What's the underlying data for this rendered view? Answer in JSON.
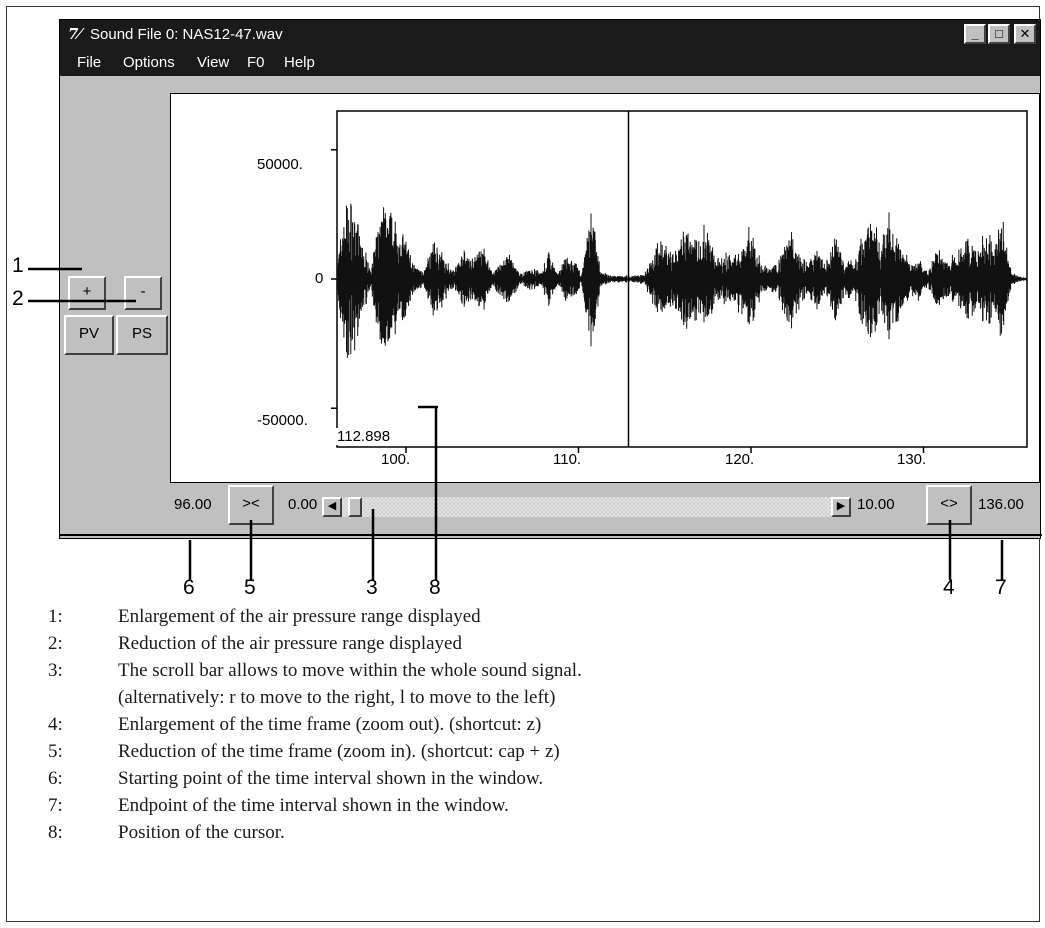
{
  "window": {
    "title": "Sound File 0: NAS12-47.wav",
    "icon_glyph": "7⁄",
    "buttons": {
      "minimize": "_",
      "maximize": "□",
      "close": "✕"
    }
  },
  "menu": [
    "File",
    "Options",
    "View",
    "F0",
    "Help"
  ],
  "left_panel": {
    "amp_zoom_in": "+",
    "amp_zoom_out": "-",
    "pv": "PV",
    "ps": "PS"
  },
  "plot": {
    "y_ticks": [
      "50000.",
      "0",
      "-50000."
    ],
    "x_ticks": [
      "100.",
      "110.",
      "120.",
      "130."
    ],
    "cursor_readout": "112.898",
    "chart_data": {
      "type": "line",
      "x_range": [
        96.0,
        136.0
      ],
      "y_range": [
        -65000,
        65000
      ],
      "cursor_x": 112.898,
      "x_ticks": [
        100,
        110,
        120,
        130
      ],
      "y_ticks": [
        50000,
        0,
        -50000
      ],
      "envelope": [
        {
          "x": 96.0,
          "a": 6000
        },
        {
          "x": 96.5,
          "a": 36000
        },
        {
          "x": 97.0,
          "a": 31000
        },
        {
          "x": 97.5,
          "a": 14000
        },
        {
          "x": 98.0,
          "a": 6000
        },
        {
          "x": 98.6,
          "a": 33000
        },
        {
          "x": 99.0,
          "a": 28000
        },
        {
          "x": 99.5,
          "a": 24000
        },
        {
          "x": 100.0,
          "a": 17000
        },
        {
          "x": 100.5,
          "a": 6000
        },
        {
          "x": 101.0,
          "a": 3000
        },
        {
          "x": 101.6,
          "a": 17000
        },
        {
          "x": 102.2,
          "a": 10000
        },
        {
          "x": 102.8,
          "a": 4000
        },
        {
          "x": 103.3,
          "a": 12000
        },
        {
          "x": 103.9,
          "a": 9000
        },
        {
          "x": 104.5,
          "a": 14000
        },
        {
          "x": 105.0,
          "a": 3000
        },
        {
          "x": 105.5,
          "a": 8000
        },
        {
          "x": 106.0,
          "a": 11000
        },
        {
          "x": 106.6,
          "a": 2000
        },
        {
          "x": 107.2,
          "a": 5000
        },
        {
          "x": 107.8,
          "a": 3000
        },
        {
          "x": 108.3,
          "a": 12000
        },
        {
          "x": 108.8,
          "a": 2000
        },
        {
          "x": 109.2,
          "a": 10000
        },
        {
          "x": 109.8,
          "a": 7000
        },
        {
          "x": 110.2,
          "a": 3000
        },
        {
          "x": 110.8,
          "a": 34000
        },
        {
          "x": 111.3,
          "a": 3000
        },
        {
          "x": 112.0,
          "a": 1500
        },
        {
          "x": 113.0,
          "a": 1500
        },
        {
          "x": 113.8,
          "a": 2000
        },
        {
          "x": 114.3,
          "a": 12000
        },
        {
          "x": 114.8,
          "a": 18000
        },
        {
          "x": 115.3,
          "a": 12000
        },
        {
          "x": 115.8,
          "a": 14000
        },
        {
          "x": 116.4,
          "a": 26000
        },
        {
          "x": 117.0,
          "a": 18000
        },
        {
          "x": 117.4,
          "a": 24000
        },
        {
          "x": 118.0,
          "a": 8000
        },
        {
          "x": 118.5,
          "a": 11000
        },
        {
          "x": 119.0,
          "a": 10000
        },
        {
          "x": 119.5,
          "a": 17000
        },
        {
          "x": 120.0,
          "a": 22000
        },
        {
          "x": 120.6,
          "a": 7000
        },
        {
          "x": 121.2,
          "a": 5000
        },
        {
          "x": 121.8,
          "a": 12000
        },
        {
          "x": 122.3,
          "a": 24000
        },
        {
          "x": 122.8,
          "a": 13000
        },
        {
          "x": 123.3,
          "a": 6000
        },
        {
          "x": 123.8,
          "a": 14000
        },
        {
          "x": 124.3,
          "a": 6000
        },
        {
          "x": 124.9,
          "a": 18000
        },
        {
          "x": 125.4,
          "a": 9000
        },
        {
          "x": 126.0,
          "a": 8000
        },
        {
          "x": 126.5,
          "a": 20000
        },
        {
          "x": 127.0,
          "a": 34000
        },
        {
          "x": 127.5,
          "a": 14000
        },
        {
          "x": 128.0,
          "a": 30000
        },
        {
          "x": 128.6,
          "a": 16000
        },
        {
          "x": 129.2,
          "a": 7000
        },
        {
          "x": 129.8,
          "a": 9000
        },
        {
          "x": 130.3,
          "a": 4000
        },
        {
          "x": 130.8,
          "a": 14000
        },
        {
          "x": 131.4,
          "a": 8000
        },
        {
          "x": 132.0,
          "a": 11000
        },
        {
          "x": 132.6,
          "a": 19000
        },
        {
          "x": 133.1,
          "a": 11000
        },
        {
          "x": 133.6,
          "a": 20000
        },
        {
          "x": 134.1,
          "a": 16000
        },
        {
          "x": 134.6,
          "a": 26000
        },
        {
          "x": 135.1,
          "a": 3000
        },
        {
          "x": 135.6,
          "a": 1000
        },
        {
          "x": 136.0,
          "a": 1000
        }
      ]
    }
  },
  "bottom_bar": {
    "start_time": "96.00",
    "zoom_in": "><",
    "scroll_min": "0.00",
    "scroll_max": "10.00",
    "zoom_out": "<>",
    "end_time": "136.00",
    "scroll_position": 0.02
  },
  "callouts": [
    "1",
    "2",
    "3",
    "4",
    "5",
    "6",
    "7",
    "8"
  ],
  "legend": [
    {
      "num": "1:",
      "text": "Enlargement of the air pressure range displayed"
    },
    {
      "num": "2:",
      "text": "Reduction of the air pressure range displayed"
    },
    {
      "num": "3:",
      "text": "The scroll bar allows to move within the whole sound signal."
    },
    {
      "num": "",
      "text": "(alternatively: r to move to the right, l to move to the left)"
    },
    {
      "num": "4:",
      "text": "Enlargement of the time frame (zoom out). (shortcut: z)"
    },
    {
      "num": "5:",
      "text": "Reduction of the time frame (zoom in). (shortcut: cap + z)"
    },
    {
      "num": "6:",
      "text": "Starting point of the time interval shown in the window."
    },
    {
      "num": "7:",
      "text": "Endpoint of the time interval shown in the window."
    },
    {
      "num": "8:",
      "text": "Position of the cursor."
    }
  ]
}
